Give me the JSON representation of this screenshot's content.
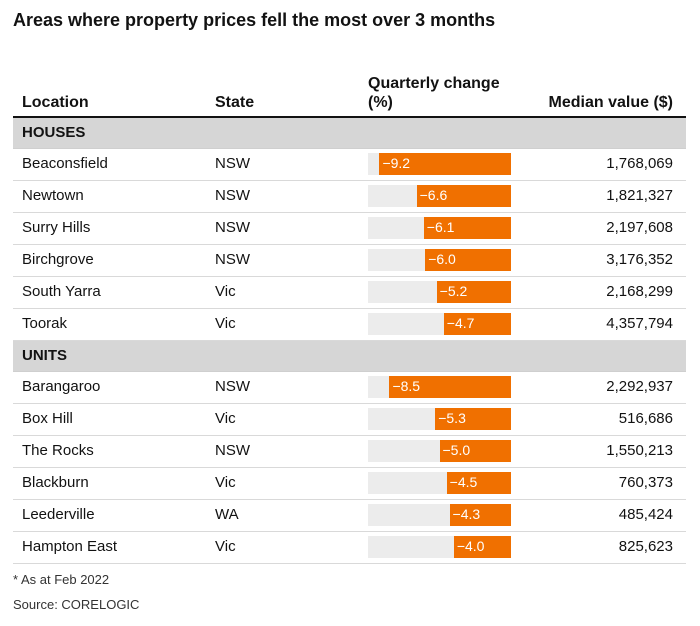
{
  "title": "Areas where property prices fell the most over 3 months",
  "headers": {
    "location": "Location",
    "state": "State",
    "change": "Quarterly change (%)",
    "median": "Median value ($)"
  },
  "footnote": "* As at Feb 2022",
  "source": "Source: CORELOGIC",
  "colors": {
    "bar": "#f07000",
    "bar_track": "#ececec",
    "section_bg": "#d6d6d6"
  },
  "chart_data": {
    "type": "table",
    "xlim": [
      -10,
      0
    ],
    "sections": [
      {
        "name": "HOUSES",
        "rows": [
          {
            "location": "Beaconsfield",
            "state": "NSW",
            "change": -9.2,
            "change_label": "−9.2",
            "median": "1,768,069"
          },
          {
            "location": "Newtown",
            "state": "NSW",
            "change": -6.6,
            "change_label": "−6.6",
            "median": "1,821,327"
          },
          {
            "location": "Surry Hills",
            "state": "NSW",
            "change": -6.1,
            "change_label": "−6.1",
            "median": "2,197,608"
          },
          {
            "location": "Birchgrove",
            "state": "NSW",
            "change": -6.0,
            "change_label": "−6.0",
            "median": "3,176,352"
          },
          {
            "location": "South Yarra",
            "state": "Vic",
            "change": -5.2,
            "change_label": "−5.2",
            "median": "2,168,299"
          },
          {
            "location": "Toorak",
            "state": "Vic",
            "change": -4.7,
            "change_label": "−4.7",
            "median": "4,357,794"
          }
        ]
      },
      {
        "name": "UNITS",
        "rows": [
          {
            "location": "Barangaroo",
            "state": "NSW",
            "change": -8.5,
            "change_label": "−8.5",
            "median": "2,292,937"
          },
          {
            "location": "Box Hill",
            "state": "Vic",
            "change": -5.3,
            "change_label": "−5.3",
            "median": "516,686"
          },
          {
            "location": "The Rocks",
            "state": "NSW",
            "change": -5.0,
            "change_label": "−5.0",
            "median": "1,550,213"
          },
          {
            "location": "Blackburn",
            "state": "Vic",
            "change": -4.5,
            "change_label": "−4.5",
            "median": "760,373"
          },
          {
            "location": "Leederville",
            "state": "WA",
            "change": -4.3,
            "change_label": "−4.3",
            "median": "485,424"
          },
          {
            "location": "Hampton East",
            "state": "Vic",
            "change": -4.0,
            "change_label": "−4.0",
            "median": "825,623"
          }
        ]
      }
    ]
  }
}
